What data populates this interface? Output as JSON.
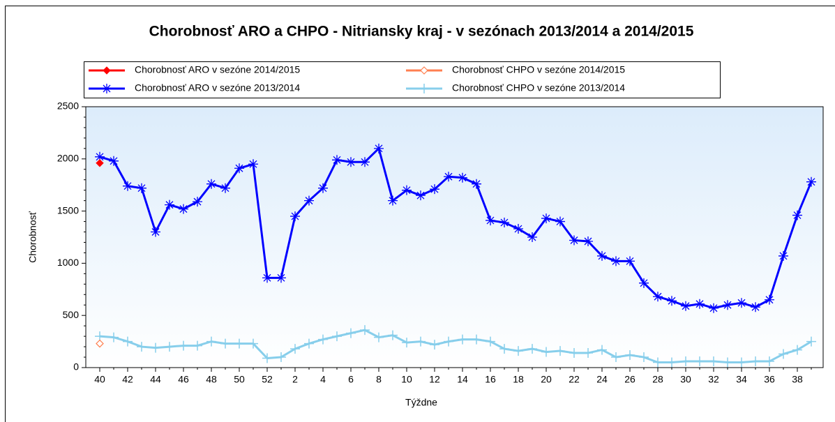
{
  "chart_data": {
    "type": "line",
    "title": "Chorobnosť ARO a CHPO - Nitriansky kraj - v sezónach 2013/2014 a 2014/2015",
    "x_label": "Týždne",
    "y_label": "Chorobnosť",
    "categories": [
      40,
      null,
      42,
      null,
      44,
      null,
      46,
      null,
      48,
      null,
      50,
      null,
      52,
      null,
      2,
      null,
      4,
      null,
      6,
      null,
      8,
      null,
      10,
      null,
      12,
      null,
      14,
      null,
      16,
      null,
      18,
      null,
      20,
      null,
      22,
      null,
      24,
      null,
      26,
      null,
      28,
      null,
      30,
      null,
      32,
      null,
      34,
      null,
      36,
      null,
      38,
      null
    ],
    "ylim": [
      0,
      2500
    ],
    "yticks": [
      0,
      500,
      1000,
      1500,
      2000,
      2500
    ],
    "legend": "top",
    "series": [
      {
        "name": "Chorobnosť ARO v sezóne 2014/2015",
        "color": "#ff0000",
        "marker": "diamond",
        "values": [
          1960,
          null,
          null,
          null,
          null,
          null,
          null,
          null,
          null,
          null,
          null,
          null,
          null,
          null,
          null,
          null,
          null,
          null,
          null,
          null,
          null,
          null,
          null,
          null,
          null,
          null,
          null,
          null,
          null,
          null,
          null,
          null,
          null,
          null,
          null,
          null,
          null,
          null,
          null,
          null,
          null,
          null,
          null,
          null,
          null,
          null,
          null,
          null,
          null,
          null,
          null,
          null
        ]
      },
      {
        "name": "Chorobnosť CHPO v sezóne 2014/2015",
        "color": "#ff7f50",
        "marker": "open-diamond",
        "values": [
          230,
          null,
          null,
          null,
          null,
          null,
          null,
          null,
          null,
          null,
          null,
          null,
          null,
          null,
          null,
          null,
          null,
          null,
          null,
          null,
          null,
          null,
          null,
          null,
          null,
          null,
          null,
          null,
          null,
          null,
          null,
          null,
          null,
          null,
          null,
          null,
          null,
          null,
          null,
          null,
          null,
          null,
          null,
          null,
          null,
          null,
          null,
          null,
          null,
          null,
          null,
          null
        ]
      },
      {
        "name": "Chorobnosť ARO v sezóne 2013/2014",
        "color": "#0000ff",
        "marker": "asterisk",
        "values": [
          2020,
          1980,
          1740,
          1720,
          1300,
          1560,
          1520,
          1590,
          1760,
          1720,
          1910,
          1950,
          860,
          860,
          1450,
          1600,
          1720,
          1990,
          1970,
          1970,
          2100,
          1600,
          1700,
          1650,
          1710,
          1830,
          1820,
          1760,
          1410,
          1390,
          1330,
          1250,
          1430,
          1400,
          1220,
          1210,
          1070,
          1020,
          1020,
          810,
          680,
          640,
          590,
          610,
          570,
          600,
          620,
          580,
          650,
          1070,
          1460,
          1780
        ]
      },
      {
        "name": "Chorobnosť CHPO v sezóne 2013/2014",
        "color": "#87ceeb",
        "marker": "plus",
        "values": [
          300,
          290,
          250,
          200,
          190,
          200,
          210,
          210,
          250,
          230,
          230,
          230,
          90,
          100,
          180,
          230,
          270,
          300,
          330,
          360,
          290,
          310,
          240,
          250,
          220,
          250,
          270,
          270,
          250,
          180,
          160,
          180,
          150,
          160,
          140,
          140,
          170,
          100,
          120,
          100,
          50,
          50,
          60,
          60,
          60,
          50,
          50,
          60,
          60,
          130,
          170,
          250
        ]
      }
    ]
  }
}
